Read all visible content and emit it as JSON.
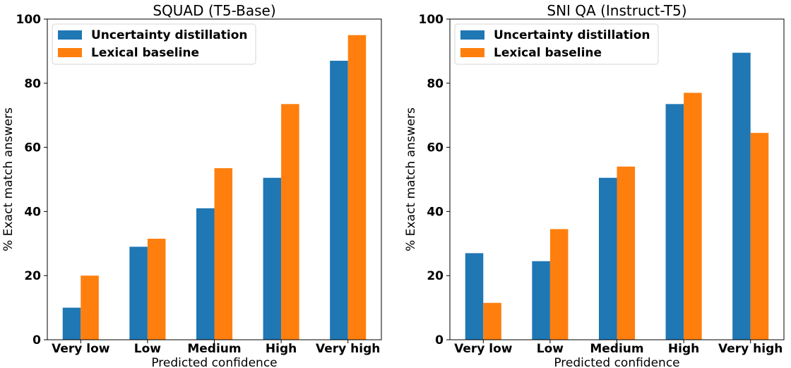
{
  "colors": {
    "uncertainty": "#1f77b4",
    "lexical": "#ff7f0e"
  },
  "chart_data": [
    {
      "type": "bar",
      "title": "SQUAD (T5-Base)",
      "xlabel": "Predicted confidence",
      "ylabel": "% Exact match answers",
      "categories": [
        "Very low",
        "Low",
        "Medium",
        "High",
        "Very high"
      ],
      "ylim": [
        0,
        100
      ],
      "yticks": [
        0,
        20,
        40,
        60,
        80,
        100
      ],
      "legend_position": "top-left",
      "series": [
        {
          "name": "Uncertainty distillation",
          "values": [
            10,
            29,
            41,
            50.5,
            87
          ]
        },
        {
          "name": "Lexical baseline",
          "values": [
            20,
            31.5,
            53.5,
            73.5,
            95
          ]
        }
      ]
    },
    {
      "type": "bar",
      "title": "SNI QA (Instruct-T5)",
      "xlabel": "Predicted confidence",
      "ylabel": "% Exact match answers",
      "categories": [
        "Very low",
        "Low",
        "Medium",
        "High",
        "Very high"
      ],
      "ylim": [
        0,
        100
      ],
      "yticks": [
        0,
        20,
        40,
        60,
        80,
        100
      ],
      "legend_position": "top-left",
      "series": [
        {
          "name": "Uncertainty distillation",
          "values": [
            27,
            24.5,
            50.5,
            73.5,
            89.5
          ]
        },
        {
          "name": "Lexical baseline",
          "values": [
            11.5,
            34.5,
            54,
            77,
            64.5
          ]
        }
      ]
    }
  ]
}
